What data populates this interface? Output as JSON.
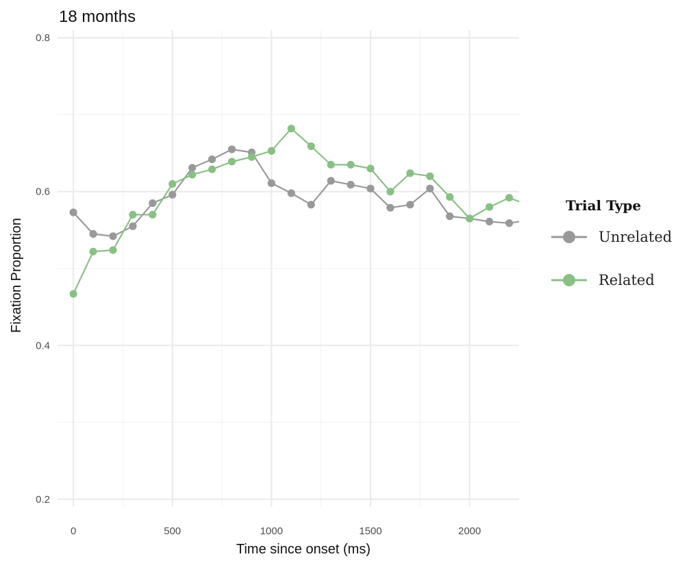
{
  "chart_data": {
    "type": "line",
    "title": "18 months",
    "xlabel": "Time since onset (ms)",
    "ylabel": "Fixation Proportion",
    "xlim": [
      -80,
      2250
    ],
    "ylim": [
      0.19,
      0.81
    ],
    "x_ticks": [
      0,
      500,
      1000,
      1500,
      2000
    ],
    "x_tick_labels": [
      "0",
      "500",
      "1000",
      "1500",
      "2000"
    ],
    "y_ticks": [
      0.2,
      0.4,
      0.6,
      0.8
    ],
    "y_tick_labels": [
      "0.2",
      "0.4",
      "0.6",
      "0.8"
    ],
    "grid": true,
    "legend": {
      "title": "Trial Type",
      "position": "right"
    },
    "x": [
      0,
      100,
      200,
      300,
      400,
      500,
      600,
      700,
      800,
      900,
      1000,
      1100,
      1200,
      1300,
      1400,
      1500,
      1600,
      1700,
      1800,
      1900,
      2000,
      2100,
      2200,
      2300
    ],
    "series": [
      {
        "name": "Unrelated",
        "color": "#999999",
        "values": [
          0.573,
          0.545,
          0.542,
          0.555,
          0.585,
          0.596,
          0.631,
          0.642,
          0.655,
          0.651,
          0.611,
          0.598,
          0.583,
          0.614,
          0.609,
          0.604,
          0.579,
          0.583,
          0.604,
          0.568,
          0.565,
          0.561,
          0.559,
          0.563
        ]
      },
      {
        "name": "Related",
        "color": "#8abf86",
        "values": [
          0.467,
          0.522,
          0.524,
          0.57,
          0.57,
          0.61,
          0.622,
          0.629,
          0.639,
          0.645,
          0.653,
          0.682,
          0.659,
          0.635,
          0.635,
          0.63,
          0.6,
          0.624,
          0.62,
          0.593,
          0.565,
          0.58,
          0.592,
          0.582
        ]
      }
    ]
  }
}
